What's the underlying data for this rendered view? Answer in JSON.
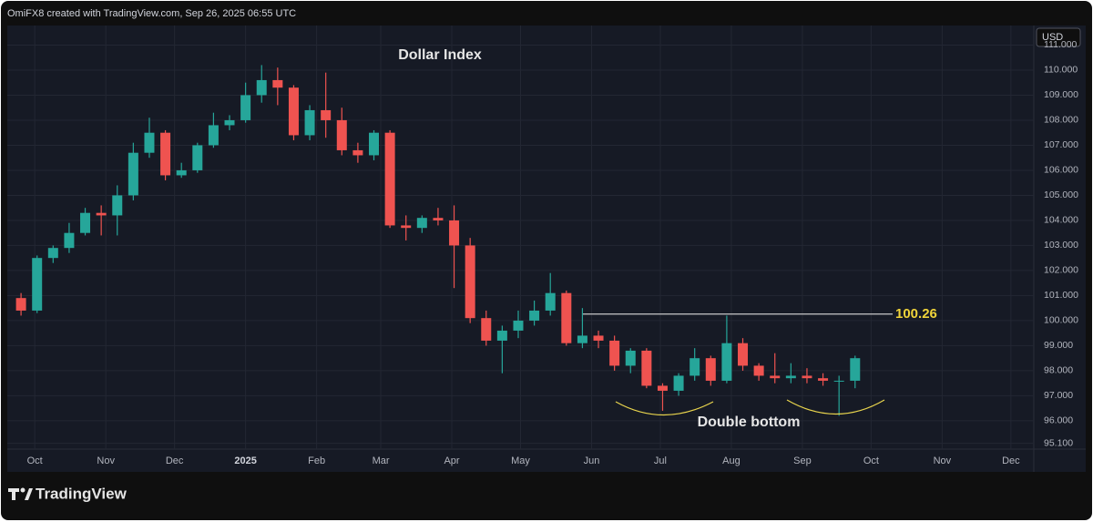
{
  "header": "OmiFX8 created with TradingView.com, Sep 26, 2025 06:55 UTC",
  "logo": "TradingView",
  "chart_data": {
    "type": "candlestick",
    "title": "Dollar Index",
    "currency": "USD",
    "annotation": "Double bottom",
    "resistance": 100.26,
    "up_color": "#26a69a",
    "down_color": "#ef5350",
    "grid": true,
    "x": [
      "2024-09-25",
      "2024-10-02",
      "2024-10-09",
      "2024-10-16",
      "2024-10-23",
      "2024-10-30",
      "2024-11-06",
      "2024-11-13",
      "2024-11-20",
      "2024-11-27",
      "2024-12-04",
      "2024-12-11",
      "2024-12-18",
      "2024-12-25",
      "2025-01-01",
      "2025-01-08",
      "2025-01-15",
      "2025-01-22",
      "2025-01-29",
      "2025-02-05",
      "2025-02-12",
      "2025-02-19",
      "2025-02-26",
      "2025-03-05",
      "2025-03-12",
      "2025-03-19",
      "2025-03-26",
      "2025-04-02",
      "2025-04-09",
      "2025-04-16",
      "2025-04-23",
      "2025-04-30",
      "2025-05-07",
      "2025-05-14",
      "2025-05-21",
      "2025-05-28",
      "2025-06-04",
      "2025-06-11",
      "2025-06-18",
      "2025-06-25",
      "2025-07-02",
      "2025-07-09",
      "2025-07-16",
      "2025-07-23",
      "2025-07-30",
      "2025-08-06",
      "2025-08-13",
      "2025-08-20",
      "2025-08-27",
      "2025-09-03",
      "2025-09-10",
      "2025-09-17",
      "2025-09-24"
    ],
    "open": [
      100.9,
      100.4,
      102.5,
      102.9,
      103.5,
      104.3,
      104.2,
      105.0,
      106.7,
      107.5,
      105.8,
      106.0,
      107.0,
      107.8,
      108.0,
      109.0,
      109.6,
      109.3,
      107.4,
      108.4,
      108.0,
      106.8,
      106.6,
      107.5,
      103.8,
      103.7,
      104.1,
      104.0,
      103.0,
      100.1,
      99.2,
      99.6,
      100.0,
      100.4,
      101.1,
      99.1,
      99.4,
      99.2,
      98.2,
      98.8,
      97.4,
      97.2,
      97.8,
      98.5,
      97.6,
      99.1,
      98.2,
      97.8,
      97.7,
      97.8,
      97.7,
      97.6,
      97.6
    ],
    "high": [
      101.1,
      102.6,
      103.0,
      103.9,
      104.5,
      104.6,
      105.4,
      107.1,
      108.1,
      107.6,
      106.3,
      107.1,
      108.3,
      108.2,
      109.5,
      110.2,
      110.1,
      109.4,
      108.6,
      109.9,
      108.5,
      107.1,
      107.6,
      107.6,
      104.2,
      104.2,
      104.5,
      104.6,
      103.3,
      100.4,
      99.8,
      100.4,
      100.8,
      101.9,
      101.2,
      100.5,
      99.6,
      99.4,
      98.9,
      98.9,
      97.5,
      97.9,
      98.9,
      98.6,
      100.2,
      99.3,
      98.3,
      98.7,
      98.3,
      98.1,
      97.9,
      97.8,
      98.6
    ],
    "low": [
      100.2,
      100.3,
      102.3,
      102.7,
      103.4,
      103.4,
      103.4,
      104.8,
      106.5,
      105.6,
      105.7,
      105.9,
      106.9,
      107.6,
      107.9,
      108.7,
      108.6,
      107.2,
      107.2,
      107.3,
      106.6,
      106.3,
      106.4,
      103.7,
      103.2,
      103.5,
      103.8,
      101.3,
      99.9,
      99.0,
      97.9,
      99.3,
      99.8,
      100.2,
      99.0,
      98.9,
      98.9,
      98.0,
      97.9,
      97.3,
      96.4,
      97.0,
      97.6,
      97.4,
      97.5,
      98.0,
      97.6,
      97.5,
      97.5,
      97.5,
      97.4,
      96.2,
      97.3
    ],
    "close": [
      100.4,
      102.5,
      102.9,
      103.5,
      104.3,
      104.2,
      105.0,
      106.7,
      107.5,
      105.8,
      106.0,
      107.0,
      107.8,
      108.0,
      109.0,
      109.6,
      109.3,
      107.4,
      108.4,
      108.0,
      106.8,
      106.6,
      107.5,
      103.8,
      103.7,
      104.1,
      104.0,
      103.0,
      100.1,
      99.2,
      99.6,
      100.0,
      100.4,
      101.1,
      99.1,
      99.4,
      99.2,
      98.2,
      98.8,
      97.4,
      97.2,
      97.8,
      98.5,
      97.6,
      99.1,
      98.2,
      97.8,
      97.7,
      97.8,
      97.7,
      97.6,
      97.6,
      98.5
    ],
    "xlim": [
      "2024-09-19",
      "2025-12-11"
    ],
    "xticks": [
      {
        "value": "2024-10-01",
        "label": "Oct"
      },
      {
        "value": "2024-11-01",
        "label": "Nov"
      },
      {
        "value": "2024-12-01",
        "label": "Dec"
      },
      {
        "value": "2025-01-01",
        "label": "2025"
      },
      {
        "value": "2025-02-01",
        "label": "Feb"
      },
      {
        "value": "2025-03-01",
        "label": "Mar"
      },
      {
        "value": "2025-04-01",
        "label": "Apr"
      },
      {
        "value": "2025-05-01",
        "label": "May"
      },
      {
        "value": "2025-06-01",
        "label": "Jun"
      },
      {
        "value": "2025-07-01",
        "label": "Jul"
      },
      {
        "value": "2025-08-01",
        "label": "Aug"
      },
      {
        "value": "2025-09-01",
        "label": "Sep"
      },
      {
        "value": "2025-10-01",
        "label": "Oct"
      },
      {
        "value": "2025-11-01",
        "label": "Nov"
      },
      {
        "value": "2025-12-01",
        "label": "Dec"
      }
    ],
    "ylim": [
      94.87,
      111.78
    ],
    "yticks": [
      {
        "value": 95.1,
        "label": "95.100"
      },
      {
        "value": 96,
        "label": "96.000"
      },
      {
        "value": 97,
        "label": "97.000"
      },
      {
        "value": 98,
        "label": "98.000"
      },
      {
        "value": 99,
        "label": "99.000"
      },
      {
        "value": 100,
        "label": "100.000"
      },
      {
        "value": 101,
        "label": "101.000"
      },
      {
        "value": 102,
        "label": "102.000"
      },
      {
        "value": 103,
        "label": "103.000"
      },
      {
        "value": 104,
        "label": "104.000"
      },
      {
        "value": 105,
        "label": "105.000"
      },
      {
        "value": 106,
        "label": "106.000"
      },
      {
        "value": 107,
        "label": "107.000"
      },
      {
        "value": 108,
        "label": "108.000"
      },
      {
        "value": 109,
        "label": "109.000"
      },
      {
        "value": 110,
        "label": "110.000"
      },
      {
        "value": 111,
        "label": "111.000"
      }
    ]
  }
}
